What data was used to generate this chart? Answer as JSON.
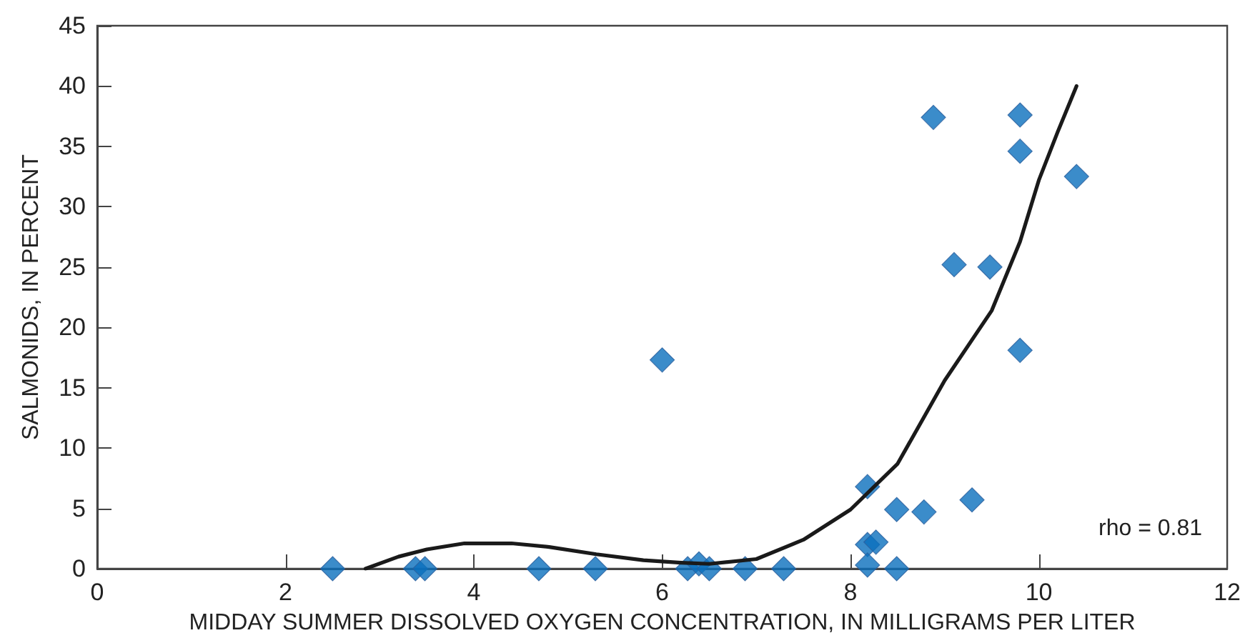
{
  "chart_data": {
    "type": "scatter",
    "xlabel": "MIDDAY SUMMER DISSOLVED OXYGEN CONCENTRATION, IN MILLIGRAMS PER LITER",
    "ylabel": "SALMONIDS, IN PERCENT",
    "xlim": [
      0,
      12
    ],
    "xticks": [
      0,
      2,
      4,
      6,
      8,
      10,
      12
    ],
    "ylim": [
      0,
      45
    ],
    "yticks": [
      0,
      5,
      10,
      15,
      20,
      25,
      30,
      35,
      40,
      45
    ],
    "grid": false,
    "annotations": [
      "rho = 0.81"
    ],
    "series": [
      {
        "marker": "diamond",
        "color": "#0a6fbd",
        "x": [
          2.5,
          3.38,
          3.48,
          4.69,
          5.29,
          6.0,
          6.27,
          6.39,
          6.5,
          6.88,
          7.29,
          8.18,
          8.18,
          8.27,
          8.18,
          8.49,
          8.49,
          8.78,
          9.29,
          8.88,
          9.8,
          9.8,
          10.4,
          9.1,
          9.48,
          9.8
        ],
        "values": [
          0,
          0,
          0,
          0,
          0,
          17.3,
          0,
          0.4,
          0,
          0,
          0,
          6.8,
          2.0,
          2.2,
          0.3,
          0,
          4.9,
          4.7,
          5.7,
          37.4,
          37.6,
          34.6,
          32.5,
          25.2,
          25.0,
          18.1
        ]
      },
      {
        "type": "line",
        "marker": "none",
        "line_style": "solid",
        "color": "#1a1a1a",
        "x": [
          2.85,
          3.2,
          3.5,
          3.9,
          4.4,
          4.8,
          5.3,
          5.8,
          6.2,
          6.5,
          7.0,
          7.5,
          8.0,
          8.5,
          9.0,
          9.5,
          9.8,
          10.0,
          10.2,
          10.4
        ],
        "values": [
          0,
          1.0,
          1.6,
          2.1,
          2.1,
          1.8,
          1.2,
          0.7,
          0.5,
          0.4,
          0.8,
          2.4,
          4.9,
          8.7,
          15.6,
          21.4,
          27.1,
          32.2,
          36.2,
          40
        ]
      }
    ]
  }
}
